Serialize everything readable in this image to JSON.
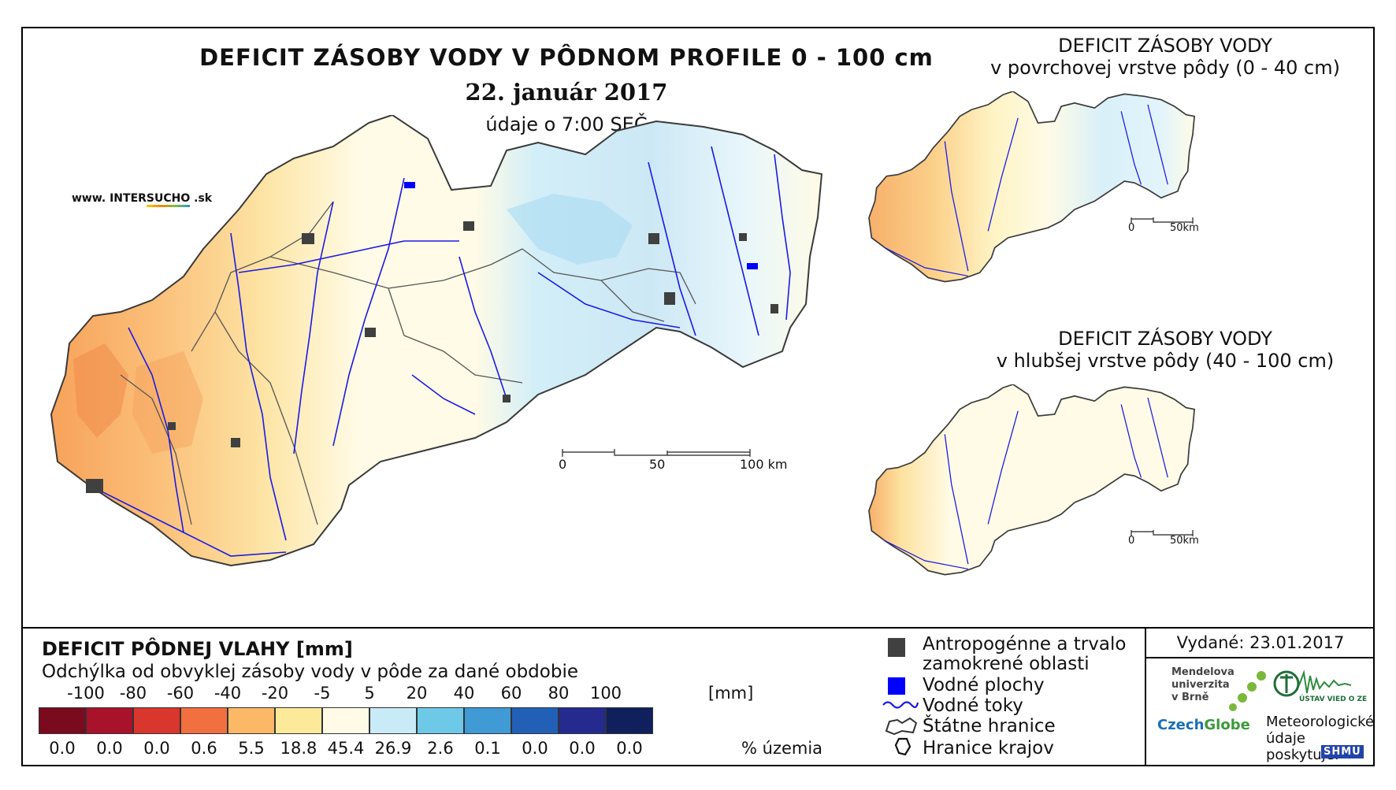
{
  "header": {
    "title": "DEFICIT ZÁSOBY VODY V PÔDNOM PROFILE 0 - 100 cm",
    "date": "22. január 2017",
    "time": "údaje o 7:00 SEČ",
    "site_prefix": "www. INTER",
    "site_highlight": "SUCHO",
    "site_suffix": " .sk"
  },
  "main_map": {
    "scale_labels": [
      "0",
      "50",
      "100 km"
    ]
  },
  "inset_top": {
    "title_line1": "DEFICIT ZÁSOBY VODY",
    "title_line2": "v povrchovej vrstve pôdy (0 - 40 cm)",
    "scale_labels": [
      "0",
      "50km"
    ]
  },
  "inset_bottom": {
    "title_line1": "DEFICIT ZÁSOBY VODY",
    "title_line2": "v hlubšej vrstve pôdy (40 - 100 cm)",
    "scale_labels": [
      "0",
      "50km"
    ]
  },
  "legend": {
    "title": "DEFICIT PÔDNEJ VLAHY [mm]",
    "subtitle": "Odchýlka od obvyklej zásoby vody v pôde za dané obdobie",
    "unit": "[mm]",
    "pct_unit": "% územia",
    "breaks": [
      "-100",
      "-80",
      "-60",
      "-40",
      "-20",
      "-5",
      "5",
      "20",
      "40",
      "60",
      "80",
      "100"
    ],
    "classes": [
      {
        "color": "#7a0a1e",
        "pct": "0.0"
      },
      {
        "color": "#a8122a",
        "pct": "0.0"
      },
      {
        "color": "#d9362e",
        "pct": "0.0"
      },
      {
        "color": "#f26f3f",
        "pct": "0.6"
      },
      {
        "color": "#fbb968",
        "pct": "5.5"
      },
      {
        "color": "#fde99a",
        "pct": "18.8"
      },
      {
        "color": "#fffbe6",
        "pct": "45.4"
      },
      {
        "color": "#c8ebf7",
        "pct": "26.9"
      },
      {
        "color": "#6ec9e8",
        "pct": "2.6"
      },
      {
        "color": "#3f9ad6",
        "pct": "0.1"
      },
      {
        "color": "#2260b8",
        "pct": "0.0"
      },
      {
        "color": "#252a8f",
        "pct": "0.0"
      },
      {
        "color": "#10205c",
        "pct": "0.0"
      }
    ]
  },
  "symbols": {
    "anthropogenic_line1": "Antropogénne a trvalo",
    "anthropogenic_line2": "zamokrené oblasti",
    "water_bodies": "Vodné plochy",
    "water_courses": "Vodné toky",
    "state_border": "Štátne hranice",
    "region_border": "Hranice krajov"
  },
  "footer": {
    "issued": "Vydané: 23.01.2017",
    "mendel": [
      "Mendelova",
      "univerzita",
      "v Brně"
    ],
    "czech_a": "Czech",
    "czech_b": "Globe",
    "uvz": "ÚSTAV VIED O ZEMI",
    "meteo": [
      "Meteorologické",
      "údaje",
      "poskytuje:"
    ],
    "shmu": "SHMU"
  },
  "colors": {
    "state_border": "#3a3a3a",
    "region_border": "#555555",
    "river": "#1a1ae6",
    "urban": "#404040"
  }
}
